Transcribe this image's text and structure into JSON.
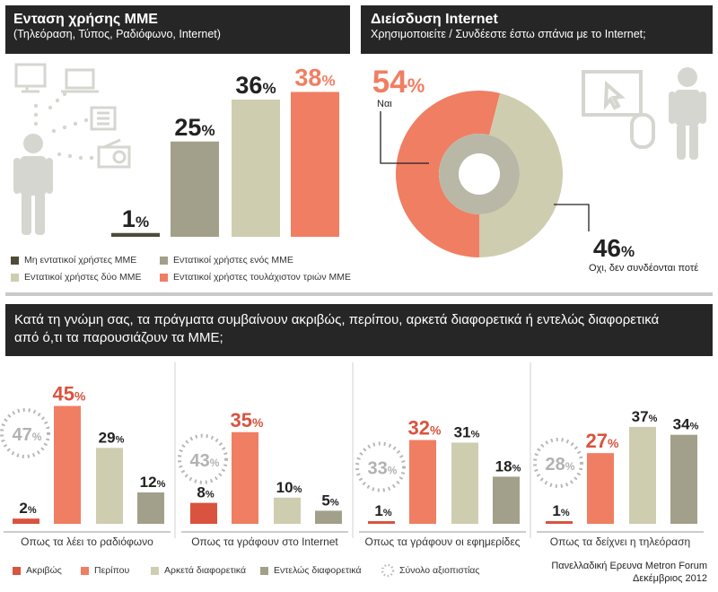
{
  "colors": {
    "dark_red": "#d9533e",
    "salmon": "#f07e62",
    "beige": "#cfcdb0",
    "gray": "#a2a08a",
    "olive": "#4f4b37"
  },
  "panel1": {
    "title": "Ενταση χρήσης ΜΜΕ",
    "subtitle": "(Τηλεόραση, Τύπος, Ραδιόφωνο, Internet)",
    "legend": [
      "Μη εντατικοί χρήστες ΜΜΕ",
      "Εντατικοί χρήστες ενός ΜΜΕ",
      "Εντατικοί χρήστες δύο ΜΜΕ",
      "Εντατικοί χρήστες τουλάχιστον τριών ΜΜΕ"
    ]
  },
  "panel2": {
    "title": "Διείσδυση Internet",
    "subtitle": "Χρησιμοποιείτε / Συνδέεστε έστω σπάνια με το Internet;",
    "yes_label": "Ναι",
    "no_label": "Οχι, δεν συνδέονται ποτέ"
  },
  "panel3": {
    "title_line1": "Κατά τη γνώμη σας, τα πράγματα συμβαίνουν ακριβώς, περίπου, αρκετά διαφορετικά ή εντελώς διαφορετικά",
    "title_line2": "από ό,τι τα παρουσιάζουν τα ΜΜΕ;",
    "legend": [
      "Ακριβώς",
      "Περίπου",
      "Αρκετά διαφορετικά",
      "Εντελώς διαφορετικά",
      "Σύνολο αξιοπιστίας"
    ],
    "source_line1": "Πανελλαδική Ερευνα Metron Forum",
    "source_line2": "Δεκέμβριος 2012"
  },
  "chart_data": [
    {
      "type": "bar",
      "title": "Ενταση χρήσης ΜΜΕ",
      "categories": [
        "Μη εντατικοί χρήστες ΜΜΕ",
        "Εντατικοί χρήστες ενός ΜΜΕ",
        "Εντατικοί χρήστες δύο ΜΜΕ",
        "Εντατικοί χρήστες τουλάχιστον τριών ΜΜΕ"
      ],
      "values": [
        1,
        25,
        36,
        38
      ],
      "unit": "%",
      "colors": [
        "#4f4b37",
        "#a2a08a",
        "#cfcdb0",
        "#f07e62"
      ]
    },
    {
      "type": "pie",
      "title": "Διείσδυση Internet",
      "labels": [
        "Ναι",
        "Οχι, δεν συνδέονται ποτέ"
      ],
      "values": [
        54,
        46
      ],
      "unit": "%",
      "colors": [
        "#f07e62",
        "#cfcdb0"
      ]
    },
    {
      "type": "bar",
      "title": "Κατά τη γνώμη σας, τα πράγματα συμβαίνουν ακριβώς, περίπου, αρκετά διαφορετικά ή εντελώς διαφορετικά από ό,τι τα παρουσιάζουν τα ΜΜΕ;",
      "series_names": [
        "Ακριβώς",
        "Περίπου",
        "Αρκετά διαφορετικά",
        "Εντελώς διαφορετικά"
      ],
      "total_label": "Σύνολο αξιοπιστίας",
      "unit": "%",
      "groups": [
        {
          "label": "Οπως τα λέει το ραδιόφωνο",
          "values": [
            2,
            45,
            29,
            12
          ],
          "total": 47
        },
        {
          "label": "Οπως τα γράφουν στο Internet",
          "values": [
            8,
            35,
            10,
            5
          ],
          "total": 43
        },
        {
          "label": "Οπως τα γράφουν οι εφημερίδες",
          "values": [
            1,
            32,
            31,
            18
          ],
          "total": 33
        },
        {
          "label": "Οπως τα δείχνει η τηλεόραση",
          "values": [
            1,
            27,
            37,
            34
          ],
          "total": 28
        }
      ]
    }
  ]
}
